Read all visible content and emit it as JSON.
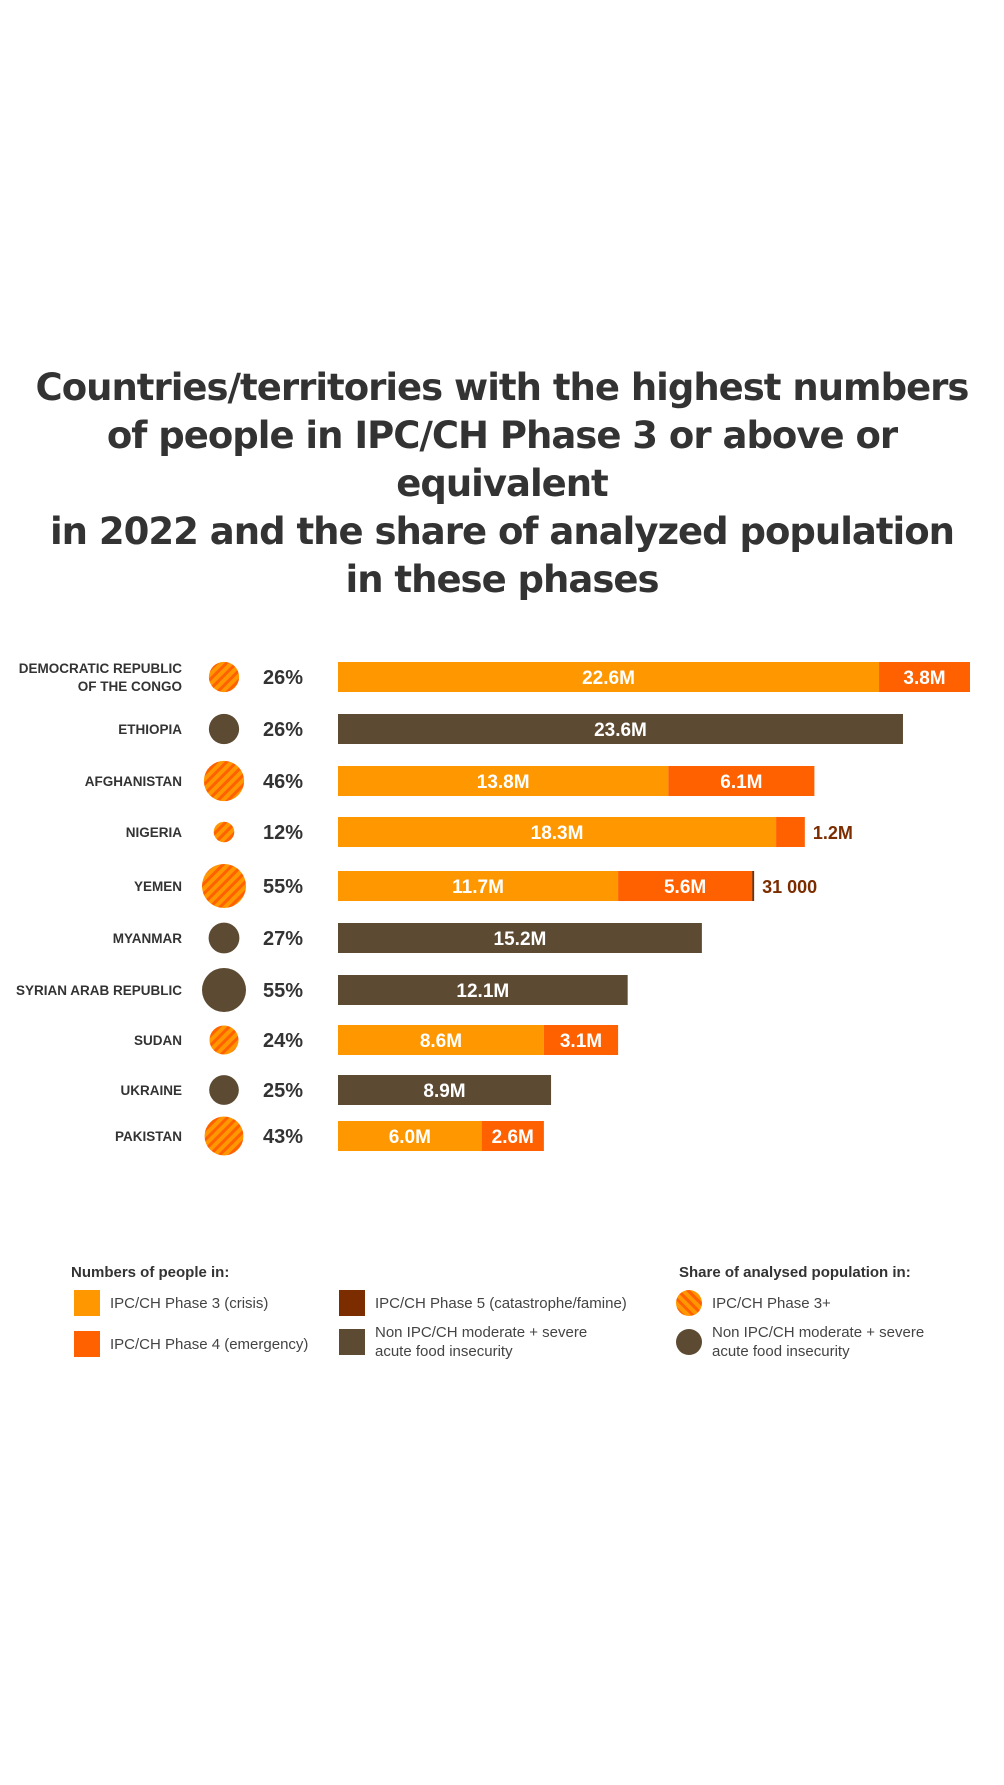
{
  "title_lines": [
    "Countries/territories with the highest numbers",
    "of people in IPC/CH Phase 3 or above or equivalent",
    "in 2022 and the share of analyzed population",
    "in these phases"
  ],
  "colors": {
    "phase3": "#FF9800",
    "phase4": "#FF6000",
    "phase5": "#7B2D00",
    "non_ipc": "#5C4A32",
    "text": "#333333"
  },
  "chart_data": {
    "type": "bar",
    "orientation": "horizontal",
    "stacked": true,
    "unit": "millions of people",
    "categories": [
      "DEMOCRATIC REPUBLIC OF THE CONGO",
      "ETHIOPIA",
      "AFGHANISTAN",
      "NIGERIA",
      "YEMEN",
      "MYANMAR",
      "SYRIAN ARAB REPUBLIC",
      "SUDAN",
      "UKRAINE",
      "PAKISTAN"
    ],
    "category_label_lines": [
      [
        "DEMOCRATIC REPUBLIC",
        "OF THE CONGO"
      ],
      [
        "ETHIOPIA"
      ],
      [
        "AFGHANISTAN"
      ],
      [
        "NIGERIA"
      ],
      [
        "YEMEN"
      ],
      [
        "MYANMAR"
      ],
      [
        "SYRIAN ARAB REPUBLIC"
      ],
      [
        "SUDAN"
      ],
      [
        "UKRAINE"
      ],
      [
        "PAKISTAN"
      ]
    ],
    "series": [
      {
        "name": "IPC/CH Phase 3 (crisis)",
        "key": "phase3",
        "values": [
          22.6,
          null,
          13.8,
          18.3,
          11.7,
          null,
          null,
          8.6,
          null,
          6.0
        ]
      },
      {
        "name": "IPC/CH Phase 4 (emergency)",
        "key": "phase4",
        "values": [
          3.8,
          null,
          6.1,
          1.2,
          5.6,
          null,
          null,
          3.1,
          null,
          2.6
        ]
      },
      {
        "name": "IPC/CH Phase 5 (catastrophe/famine)",
        "key": "phase5",
        "values": [
          null,
          null,
          null,
          null,
          0.031,
          null,
          null,
          null,
          null,
          null
        ]
      },
      {
        "name": "Non IPC/CH moderate + severe acute food insecurity",
        "key": "non_ipc",
        "values": [
          null,
          23.6,
          null,
          null,
          null,
          15.2,
          12.1,
          null,
          8.9,
          null
        ]
      }
    ],
    "data_labels": [
      [
        "22.6M",
        "3.8M",
        "",
        ""
      ],
      [
        "",
        "",
        "",
        "23.6M"
      ],
      [
        "13.8M",
        "6.1M",
        "",
        ""
      ],
      [
        "18.3M",
        "1.2M",
        "",
        ""
      ],
      [
        "11.7M",
        "5.6M",
        "31 000",
        ""
      ],
      [
        "",
        "",
        "",
        "15.2M"
      ],
      [
        "",
        "",
        "",
        "12.1M"
      ],
      [
        "8.6M",
        "3.1M",
        "",
        ""
      ],
      [
        "",
        "",
        "",
        "8.9M"
      ],
      [
        "6.0M",
        "2.6M",
        "",
        ""
      ]
    ],
    "share": {
      "values": [
        26,
        26,
        46,
        12,
        55,
        27,
        55,
        24,
        25,
        43
      ],
      "labels": [
        "26%",
        "26%",
        "46%",
        "12%",
        "55%",
        "27%",
        "55%",
        "24%",
        "25%",
        "43%"
      ],
      "type": [
        "ipc",
        "non_ipc",
        "ipc",
        "ipc",
        "ipc",
        "non_ipc",
        "non_ipc",
        "ipc",
        "non_ipc",
        "ipc"
      ]
    },
    "xlim": [
      0,
      26.4
    ],
    "grid": false
  },
  "legend": {
    "numbers_heading": "Numbers of people in:",
    "share_heading": "Share of analysed population in:",
    "phase3": "IPC/CH Phase 3 (crisis)",
    "phase4": "IPC/CH Phase 4 (emergency)",
    "phase5": "IPC/CH Phase 5 (catastrophe/famine)",
    "non_ipc_line1": "Non IPC/CH moderate + severe",
    "non_ipc_line2": "acute food insecurity",
    "share_ipc": "IPC/CH Phase 3+",
    "share_non_line1": "Non IPC/CH moderate + severe",
    "share_non_line2": "acute food insecurity"
  }
}
